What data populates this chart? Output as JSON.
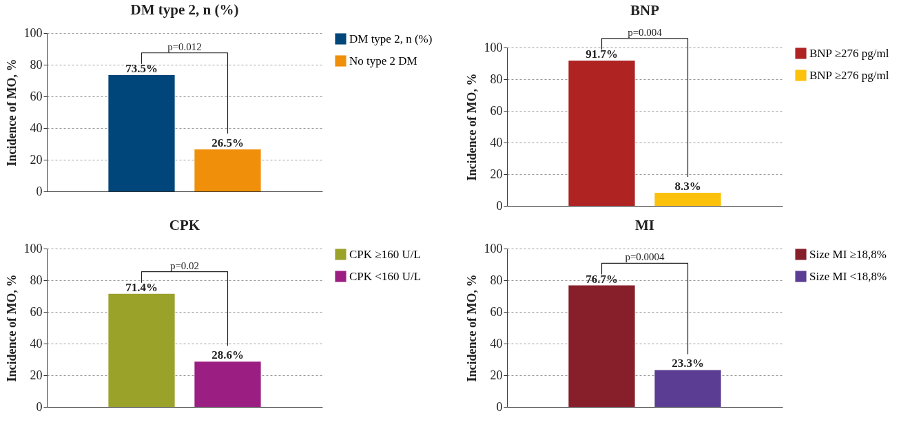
{
  "chart_data": [
    {
      "type": "bar",
      "title": "DM type 2, n (%)",
      "ylabel": "Incidence of MO, %",
      "categories": [
        null
      ],
      "series": [
        {
          "name": "DM type 2, n (%)",
          "color": "#00467a",
          "values": [
            73.5
          ],
          "value_labels": [
            "73.5%"
          ]
        },
        {
          "name": "No type 2 DM",
          "color": "#f0900a",
          "values": [
            26.5
          ],
          "value_labels": [
            "26.5%"
          ]
        }
      ],
      "annotations": [
        "p=0.012"
      ],
      "ylim": [
        0,
        100
      ],
      "yticks": [
        0,
        20,
        40,
        60,
        80,
        100
      ],
      "grid": "y",
      "legend": "right",
      "tick_labels": "y"
    },
    {
      "type": "bar",
      "title": "BNP",
      "ylabel": "Incidence of MO, %",
      "categories": [
        null
      ],
      "series": [
        {
          "name": "BNP ≥276 pg/ml",
          "color": "#b02323",
          "values": [
            91.7
          ],
          "value_labels": [
            "91.7%"
          ]
        },
        {
          "name": "BNP ≥276 pg/ml",
          "color": "#fcc10a",
          "values": [
            8.3
          ],
          "value_labels": [
            "8.3%"
          ]
        }
      ],
      "annotations": [
        "p=0.004"
      ],
      "ylim": [
        0,
        100
      ],
      "yticks": [
        0,
        20,
        40,
        60,
        80,
        100
      ],
      "grid": "y",
      "legend": "right",
      "tick_labels": "y"
    },
    {
      "type": "bar",
      "title": "CPK",
      "ylabel": "Incidence of MO, %",
      "categories": [
        null
      ],
      "series": [
        {
          "name": "CPK ≥160 U/L",
          "color": "#9aa229",
          "values": [
            71.4
          ],
          "value_labels": [
            "71.4%"
          ]
        },
        {
          "name": "CPK <160 U/L",
          "color": "#9b1f82",
          "values": [
            28.6
          ],
          "value_labels": [
            "28.6%"
          ]
        }
      ],
      "annotations": [
        "p=0.02"
      ],
      "ylim": [
        0,
        100
      ],
      "yticks": [
        0,
        20,
        40,
        60,
        80,
        100
      ],
      "grid": "y",
      "legend": "right",
      "tick_labels": "y"
    },
    {
      "type": "bar",
      "title": "MI",
      "ylabel": "Incidence of MO, %",
      "categories": [
        null
      ],
      "series": [
        {
          "name": "Size MI ≥18,8%",
          "color": "#871f2b",
          "values": [
            76.7
          ],
          "value_labels": [
            "76.7%"
          ]
        },
        {
          "name": "Size MI <18,8%",
          "color": "#5b3e93",
          "values": [
            23.3
          ],
          "value_labels": [
            "23.3%"
          ]
        }
      ],
      "annotations": [
        "p=0.0004"
      ],
      "ylim": [
        0,
        100
      ],
      "yticks": [
        0,
        20,
        40,
        60,
        80,
        100
      ],
      "grid": "y",
      "legend": "right",
      "tick_labels": "y"
    }
  ]
}
